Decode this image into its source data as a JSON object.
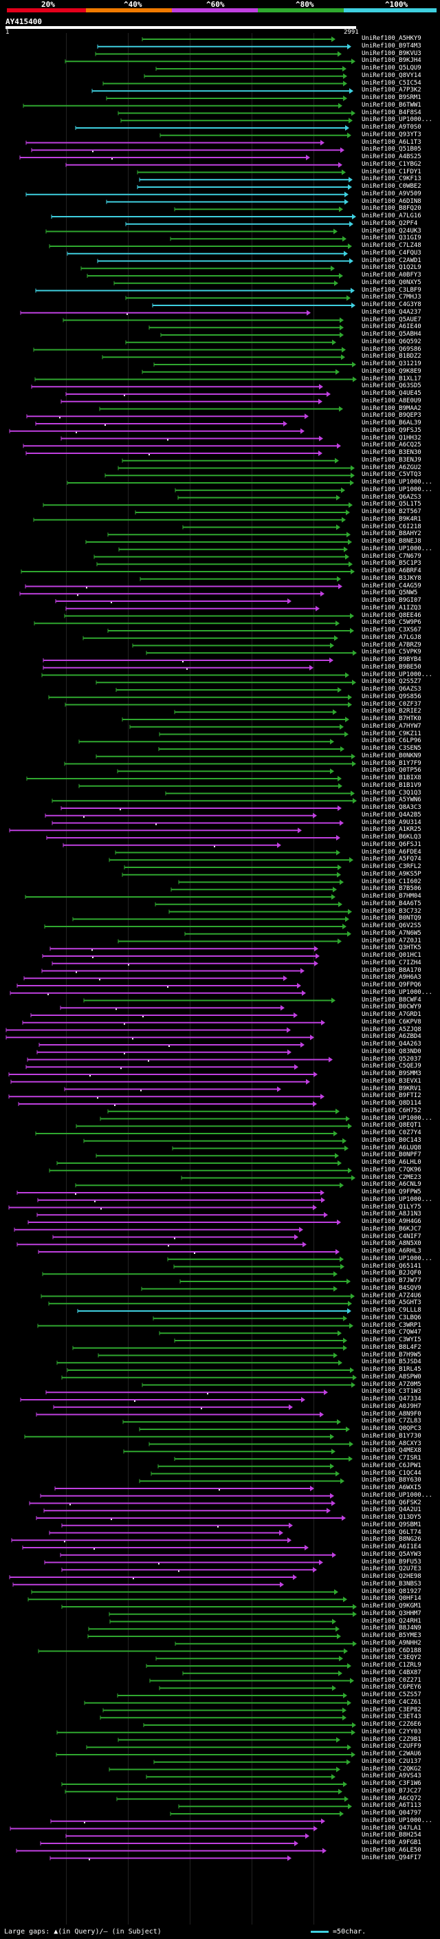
{
  "legend": {
    "labels": [
      "20%",
      "^40%",
      "^60%",
      "^80%",
      "^100%"
    ],
    "colors": {
      "red": "#e4001b",
      "orange": "#f07a00",
      "purple": "#c040e0",
      "green": "#2fa82f",
      "cyan": "#3fd0e0"
    }
  },
  "query": {
    "title": "AY415400",
    "start": "1",
    "end": "2991"
  },
  "footer": {
    "gaps_label": "Large gaps: ▲(in Query)/— (in Subject)",
    "scale_label": "=50char."
  },
  "hits": [
    {
      "label": "UniRef100_A5HKY9",
      "color": "green"
    },
    {
      "label": "UniRef100_B9T4M3",
      "color": "cyan"
    },
    {
      "label": "UniRef100_B9KVU3",
      "color": "green"
    },
    {
      "label": "UniRef100_B9KJH4",
      "color": "green"
    },
    {
      "label": "UniRef100_Q5LQU9",
      "color": "green"
    },
    {
      "label": "UniRef100_Q8VY14",
      "color": "green"
    },
    {
      "label": "UniRef100_C5IC54",
      "color": "green"
    },
    {
      "label": "UniRef100_A7P3K2",
      "color": "cyan"
    },
    {
      "label": "UniRef100_B9SRM1",
      "color": "green"
    },
    {
      "label": "UniRef100_B6TWW1",
      "color": "green"
    },
    {
      "label": "UniRef100_B4F8S4",
      "color": "green"
    },
    {
      "label": "UniRef100_UP1000...",
      "color": "green"
    },
    {
      "label": "UniRef100_A9T0S0",
      "color": "cyan"
    },
    {
      "label": "UniRef100_Q93YT3",
      "color": "green"
    },
    {
      "label": "UniRef100_A6L1T3",
      "color": "purple"
    },
    {
      "label": "UniRef100_Q51B05",
      "color": "purple"
    },
    {
      "label": "UniRef100_A4BS25",
      "color": "purple"
    },
    {
      "label": "UniRef100_C1YBG2",
      "color": "purple"
    },
    {
      "label": "UniRef100_C1FDY1",
      "color": "green"
    },
    {
      "label": "UniRef100_C9KF13",
      "color": "cyan"
    },
    {
      "label": "UniRef100_C0WBE2",
      "color": "cyan"
    },
    {
      "label": "UniRef100_A9V509",
      "color": "cyan"
    },
    {
      "label": "UniRef100_A6DIN8",
      "color": "cyan"
    },
    {
      "label": "UniRef100_B8FQ20",
      "color": "green"
    },
    {
      "label": "UniRef100_A7LG16",
      "color": "cyan"
    },
    {
      "label": "UniRef100_Q2PF4",
      "color": "cyan"
    },
    {
      "label": "UniRef100_Q24UK3",
      "color": "green"
    },
    {
      "label": "UniRef100_Q31GI9",
      "color": "green"
    },
    {
      "label": "UniRef100_C7LZ48",
      "color": "green"
    },
    {
      "label": "UniRef100_C4FQU3",
      "color": "cyan"
    },
    {
      "label": "UniRef100_C2AWD1",
      "color": "cyan"
    },
    {
      "label": "UniRef100_Q1Q2L9",
      "color": "green"
    },
    {
      "label": "UniRef100_A0BFY3",
      "color": "green"
    },
    {
      "label": "UniRef100_Q0NXY5",
      "color": "green"
    },
    {
      "label": "UniRef100_C3LBF9",
      "color": "cyan"
    },
    {
      "label": "UniRef100_C7MHJ3",
      "color": "green"
    },
    {
      "label": "UniRef100_C4G3Y8",
      "color": "cyan"
    },
    {
      "label": "UniRef100_Q4A237",
      "color": "purple"
    },
    {
      "label": "UniRef100_Q5AUE7",
      "color": "green"
    },
    {
      "label": "UniRef100_A6IE40",
      "color": "green"
    },
    {
      "label": "UniRef100_Q5ABH4",
      "color": "green"
    },
    {
      "label": "UniRef100_Q6Q592",
      "color": "green"
    },
    {
      "label": "UniRef100_Q69S86",
      "color": "green"
    },
    {
      "label": "UniRef100_B1BDZ2",
      "color": "green"
    },
    {
      "label": "UniRef100_Q31219",
      "color": "green"
    },
    {
      "label": "UniRef100_Q9K8E9",
      "color": "green"
    },
    {
      "label": "UniRef100_B1XL17",
      "color": "green"
    },
    {
      "label": "UniRef100_Q63SD5",
      "color": "purple"
    },
    {
      "label": "UniRef100_Q4UE45",
      "color": "purple"
    },
    {
      "label": "UniRef100_A8E0U9",
      "color": "purple"
    },
    {
      "label": "UniRef100_B9MAA2",
      "color": "green"
    },
    {
      "label": "UniRef100_B9QEP3",
      "color": "purple"
    },
    {
      "label": "UniRef100_B6AL39",
      "color": "purple"
    },
    {
      "label": "UniRef100_Q9FSJ5",
      "color": "purple"
    },
    {
      "label": "UniRef100_Q1HH32",
      "color": "purple"
    },
    {
      "label": "UniRef100_A6CQ25",
      "color": "purple"
    },
    {
      "label": "UniRef100_B3EN30",
      "color": "purple"
    },
    {
      "label": "UniRef100_B3ENJ9",
      "color": "green"
    },
    {
      "label": "UniRef100_A6ZGU2",
      "color": "green"
    },
    {
      "label": "UniRef100_C5VTQ3",
      "color": "green"
    },
    {
      "label": "UniRef100_UP1000...",
      "color": "green"
    },
    {
      "label": "UniRef100_UP1000...",
      "color": "green"
    },
    {
      "label": "UniRef100_Q6AZS3",
      "color": "green"
    },
    {
      "label": "UniRef100_Q5L1T5",
      "color": "green"
    },
    {
      "label": "UniRef100_B2T567",
      "color": "green"
    },
    {
      "label": "UniRef100_B9K4R1",
      "color": "green"
    },
    {
      "label": "UniRef100_C6I218",
      "color": "green"
    },
    {
      "label": "UniRef100_B8AHY2",
      "color": "green"
    },
    {
      "label": "UniRef100_B8NEJ8",
      "color": "green"
    },
    {
      "label": "UniRef100_UP1000...",
      "color": "green"
    },
    {
      "label": "UniRef100_C7N679",
      "color": "green"
    },
    {
      "label": "UniRef100_B5C1P3",
      "color": "green"
    },
    {
      "label": "UniRef100_A6BRF4",
      "color": "green"
    },
    {
      "label": "UniRef100_B3JKY8",
      "color": "green"
    },
    {
      "label": "UniRef100_C4AG59",
      "color": "purple"
    },
    {
      "label": "UniRef100_Q5NW5",
      "color": "purple"
    },
    {
      "label": "UniRef100_B9GI07",
      "color": "purple"
    },
    {
      "label": "UniRef100_A1IZQ3",
      "color": "purple"
    },
    {
      "label": "UniRef100_Q8EE46",
      "color": "green"
    },
    {
      "label": "UniRef100_C5W9P6",
      "color": "green"
    },
    {
      "label": "UniRef100_C3XS67",
      "color": "green"
    },
    {
      "label": "UniRef100_A7LGJ8",
      "color": "green"
    },
    {
      "label": "UniRef100_A7BRZ9",
      "color": "green"
    },
    {
      "label": "UniRef100_C5VPK9",
      "color": "green"
    },
    {
      "label": "UniRef100_B9BYB4",
      "color": "purple"
    },
    {
      "label": "UniRef100_B9BE50",
      "color": "purple"
    },
    {
      "label": "UniRef100_UP1000...",
      "color": "green"
    },
    {
      "label": "UniRef100_Q2S5Z7",
      "color": "green"
    },
    {
      "label": "UniRef100_Q6AZS3",
      "color": "green"
    },
    {
      "label": "UniRef100_Q9S856",
      "color": "green"
    },
    {
      "label": "UniRef100_C0ZF37",
      "color": "green"
    },
    {
      "label": "UniRef100_B2RIE2",
      "color": "green"
    },
    {
      "label": "UniRef100_B7HTK0",
      "color": "green"
    },
    {
      "label": "UniRef100_A7HYW7",
      "color": "green"
    },
    {
      "label": "UniRef100_C9KZ11",
      "color": "green"
    },
    {
      "label": "UniRef100_C6LP96",
      "color": "green"
    },
    {
      "label": "UniRef100_C3SEN5",
      "color": "green"
    },
    {
      "label": "UniRef100_B0NKN9",
      "color": "green"
    },
    {
      "label": "UniRef100_B1Y7F9",
      "color": "green"
    },
    {
      "label": "UniRef100_Q0TP56",
      "color": "green"
    },
    {
      "label": "UniRef100_B1BIX8",
      "color": "green"
    },
    {
      "label": "UniRef100_B1B1V9",
      "color": "green"
    },
    {
      "label": "UniRef100_C3Q1Q3",
      "color": "green"
    },
    {
      "label": "UniRef100_A5YWN6",
      "color": "green"
    },
    {
      "label": "UniRef100_Q8A3C3",
      "color": "purple"
    },
    {
      "label": "UniRef100_Q4A2B5",
      "color": "purple"
    },
    {
      "label": "UniRef100_A9U314",
      "color": "purple"
    },
    {
      "label": "UniRef100_A1KR25",
      "color": "purple"
    },
    {
      "label": "UniRef100_B6KLQ3",
      "color": "purple"
    },
    {
      "label": "UniRef100_Q6FSJ1",
      "color": "purple"
    },
    {
      "label": "UniRef100_A6FDE4",
      "color": "green"
    },
    {
      "label": "UniRef100_A5FQ74",
      "color": "green"
    },
    {
      "label": "UniRef100_C3RFL2",
      "color": "green"
    },
    {
      "label": "UniRef100_A9KS5P",
      "color": "green"
    },
    {
      "label": "UniRef100_C1I602",
      "color": "green"
    },
    {
      "label": "UniRef100_B7B506",
      "color": "green"
    },
    {
      "label": "UniRef100_B7HM04",
      "color": "green"
    },
    {
      "label": "UniRef100_B4A6T5",
      "color": "green"
    },
    {
      "label": "UniRef100_B3C732",
      "color": "green"
    },
    {
      "label": "UniRef100_B0NTQ9",
      "color": "green"
    },
    {
      "label": "UniRef100_Q6V2S5",
      "color": "green"
    },
    {
      "label": "UniRef100_A7N6W5",
      "color": "green"
    },
    {
      "label": "UniRef100_A7Z0J1",
      "color": "green"
    },
    {
      "label": "UniRef100_Q3HTK5",
      "color": "purple"
    },
    {
      "label": "UniRef100_Q01HC1",
      "color": "purple"
    },
    {
      "label": "UniRef100_C7IZH4",
      "color": "purple"
    },
    {
      "label": "UniRef100_B8A170",
      "color": "purple"
    },
    {
      "label": "UniRef100_A9H6A3",
      "color": "purple"
    },
    {
      "label": "UniRef100_Q9FPQ6",
      "color": "purple"
    },
    {
      "label": "UniRef100_UP1000...",
      "color": "purple"
    },
    {
      "label": "UniRef100_B8CWF4",
      "color": "green"
    },
    {
      "label": "UniRef100_B0CWY9",
      "color": "purple"
    },
    {
      "label": "UniRef100_A7GRD1",
      "color": "purple"
    },
    {
      "label": "UniRef100_C6KPV8",
      "color": "purple"
    },
    {
      "label": "UniRef100_A5ZJQ8",
      "color": "purple"
    },
    {
      "label": "UniRef100_A6ZBD4",
      "color": "purple"
    },
    {
      "label": "UniRef100_Q4A263",
      "color": "purple"
    },
    {
      "label": "UniRef100_Q83ND0",
      "color": "purple"
    },
    {
      "label": "UniRef100_Q52037",
      "color": "purple"
    },
    {
      "label": "UniRef100_C5QEJ9",
      "color": "purple"
    },
    {
      "label": "UniRef100_B9SMM3",
      "color": "purple"
    },
    {
      "label": "UniRef100_B3EVX1",
      "color": "purple"
    },
    {
      "label": "UniRef100_B9KRV1",
      "color": "purple"
    },
    {
      "label": "UniRef100_B9FTI2",
      "color": "purple"
    },
    {
      "label": "UniRef100_Q8D114",
      "color": "purple"
    },
    {
      "label": "UniRef100_C6H752",
      "color": "green"
    },
    {
      "label": "UniRef100_UP1000...",
      "color": "green"
    },
    {
      "label": "UniRef100_Q8EQT1",
      "color": "green"
    },
    {
      "label": "UniRef100_C0Z7Y4",
      "color": "green"
    },
    {
      "label": "UniRef100_B0C143",
      "color": "green"
    },
    {
      "label": "UniRef100_A6LUQ8",
      "color": "green"
    },
    {
      "label": "UniRef100_B0NPF7",
      "color": "green"
    },
    {
      "label": "UniRef100_A6LHL0",
      "color": "green"
    },
    {
      "label": "UniRef100_C7QK96",
      "color": "green"
    },
    {
      "label": "UniRef100_C2ME23",
      "color": "green"
    },
    {
      "label": "UniRef100_A6CNL9",
      "color": "green"
    },
    {
      "label": "UniRef100_Q9FPW5",
      "color": "purple"
    },
    {
      "label": "UniRef100_UP1000...",
      "color": "purple"
    },
    {
      "label": "UniRef100_Q1LY75",
      "color": "purple"
    },
    {
      "label": "UniRef100_A8J1N3",
      "color": "purple"
    },
    {
      "label": "UniRef100_A9H4G6",
      "color": "purple"
    },
    {
      "label": "UniRef100_B6KJC7",
      "color": "purple"
    },
    {
      "label": "UniRef100_C4NIF7",
      "color": "purple"
    },
    {
      "label": "UniRef100_A8N5X0",
      "color": "purple"
    },
    {
      "label": "UniRef100_A6RHL3",
      "color": "purple"
    },
    {
      "label": "UniRef100_UP1000...",
      "color": "green"
    },
    {
      "label": "UniRef100_Q65141",
      "color": "green"
    },
    {
      "label": "UniRef100_B2JQF0",
      "color": "green"
    },
    {
      "label": "UniRef100_B7JW77",
      "color": "green"
    },
    {
      "label": "UniRef100_B4SQV9",
      "color": "green"
    },
    {
      "label": "UniRef100_A7Z4U6",
      "color": "green"
    },
    {
      "label": "UniRef100_A5GHT3",
      "color": "green"
    },
    {
      "label": "UniRef100_C9LLL8",
      "color": "cyan"
    },
    {
      "label": "UniRef100_C3LBQ6",
      "color": "green"
    },
    {
      "label": "UniRef100_C3WRP1",
      "color": "green"
    },
    {
      "label": "UniRef100_C7QW47",
      "color": "green"
    },
    {
      "label": "UniRef100_C3WYI5",
      "color": "green"
    },
    {
      "label": "UniRef100_B8L4F2",
      "color": "green"
    },
    {
      "label": "UniRef100_B7H9W5",
      "color": "green"
    },
    {
      "label": "UniRef100_B5JSD4",
      "color": "green"
    },
    {
      "label": "UniRef100_B1RL45",
      "color": "green"
    },
    {
      "label": "UniRef100_A8SPW0",
      "color": "green"
    },
    {
      "label": "UniRef100_A7Z0M5",
      "color": "green"
    },
    {
      "label": "UniRef100_C3T1W3",
      "color": "purple"
    },
    {
      "label": "UniRef100_Q47334",
      "color": "purple"
    },
    {
      "label": "UniRef100_A0J9H7",
      "color": "purple"
    },
    {
      "label": "UniRef100_A8N9F0",
      "color": "purple"
    },
    {
      "label": "UniRef100_C7ZL83",
      "color": "green"
    },
    {
      "label": "UniRef100_Q0QPC3",
      "color": "green"
    },
    {
      "label": "UniRef100_B1Y730",
      "color": "green"
    },
    {
      "label": "UniRef100_A8CXY3",
      "color": "green"
    },
    {
      "label": "UniRef100_Q4MEX8",
      "color": "green"
    },
    {
      "label": "UniRef100_C7ISR1",
      "color": "green"
    },
    {
      "label": "UniRef100_C6JPW1",
      "color": "green"
    },
    {
      "label": "UniRef100_C1QC44",
      "color": "green"
    },
    {
      "label": "UniRef100_B8Y630",
      "color": "green"
    },
    {
      "label": "UniRef100_A6WXI5",
      "color": "purple"
    },
    {
      "label": "UniRef100_UP1000...",
      "color": "purple"
    },
    {
      "label": "UniRef100_Q6FSK2",
      "color": "purple"
    },
    {
      "label": "UniRef100_Q4A2U1",
      "color": "purple"
    },
    {
      "label": "UniRef100_Q13DY5",
      "color": "purple"
    },
    {
      "label": "UniRef100_Q9SBM1",
      "color": "purple"
    },
    {
      "label": "UniRef100_Q6LT74",
      "color": "purple"
    },
    {
      "label": "UniRef100_B8NG26",
      "color": "purple"
    },
    {
      "label": "UniRef100_A6I1E4",
      "color": "purple"
    },
    {
      "label": "UniRef100_Q5AYW3",
      "color": "purple"
    },
    {
      "label": "UniRef100_B9FU53",
      "color": "purple"
    },
    {
      "label": "UniRef100_Q2U7E3",
      "color": "purple"
    },
    {
      "label": "UniRef100_Q2HE98",
      "color": "purple"
    },
    {
      "label": "UniRef100_B3NBS3",
      "color": "purple"
    },
    {
      "label": "UniRef100_Q81927",
      "color": "green"
    },
    {
      "label": "UniRef100_Q0HF14",
      "color": "green"
    },
    {
      "label": "UniRef100_Q9KGM1",
      "color": "green"
    },
    {
      "label": "UniRef100_Q3HHM7",
      "color": "green"
    },
    {
      "label": "UniRef100_Q24RH1",
      "color": "green"
    },
    {
      "label": "UniRef100_B8J4N9",
      "color": "green"
    },
    {
      "label": "UniRef100_B5YME3",
      "color": "green"
    },
    {
      "label": "UniRef100_A9NHH2",
      "color": "green"
    },
    {
      "label": "UniRef100_C6D188",
      "color": "green"
    },
    {
      "label": "UniRef100_C3EQY2",
      "color": "green"
    },
    {
      "label": "UniRef100_C1ZRL9",
      "color": "green"
    },
    {
      "label": "UniRef100_C4BX87",
      "color": "green"
    },
    {
      "label": "UniRef100_C0Z271",
      "color": "green"
    },
    {
      "label": "UniRef100_C6PEY6",
      "color": "green"
    },
    {
      "label": "UniRef100_C5ZS57",
      "color": "green"
    },
    {
      "label": "UniRef100_C4CZ61",
      "color": "green"
    },
    {
      "label": "UniRef100_C3EP82",
      "green": true,
      "color": "green"
    },
    {
      "label": "UniRef100_C3ET43",
      "color": "green"
    },
    {
      "label": "UniRef100_C2Z6E6",
      "color": "green"
    },
    {
      "label": "UniRef100_C2YY03",
      "color": "green"
    },
    {
      "label": "UniRef100_C2Z9B1",
      "color": "green"
    },
    {
      "label": "UniRef100_C2UFF9",
      "color": "green"
    },
    {
      "label": "UniRef100_C2WAU6",
      "color": "green"
    },
    {
      "label": "UniRef100_C2U137",
      "color": "green"
    },
    {
      "label": "UniRef100_C2QKG2",
      "color": "green"
    },
    {
      "label": "UniRef100_A9VS43",
      "color": "green"
    },
    {
      "label": "UniRef100_C3F1W6",
      "color": "green"
    },
    {
      "label": "UniRef100_B7JC27",
      "color": "green"
    },
    {
      "label": "UniRef100_A6CQ72",
      "color": "green"
    },
    {
      "label": "UniRef100_A6T113",
      "color": "green"
    },
    {
      "label": "UniRef100_Q04797",
      "color": "green"
    },
    {
      "label": "UniRef100_UP1000...",
      "color": "purple"
    },
    {
      "label": "UniRef100_Q47LA1",
      "color": "purple"
    },
    {
      "label": "UniRef100_B8H254",
      "color": "purple"
    },
    {
      "label": "UniRef100_A9FGB1",
      "color": "purple"
    },
    {
      "label": "UniRef100_A6LE50",
      "color": "purple"
    },
    {
      "label": "UniRef100_Q94FI7",
      "color": "purple"
    }
  ]
}
